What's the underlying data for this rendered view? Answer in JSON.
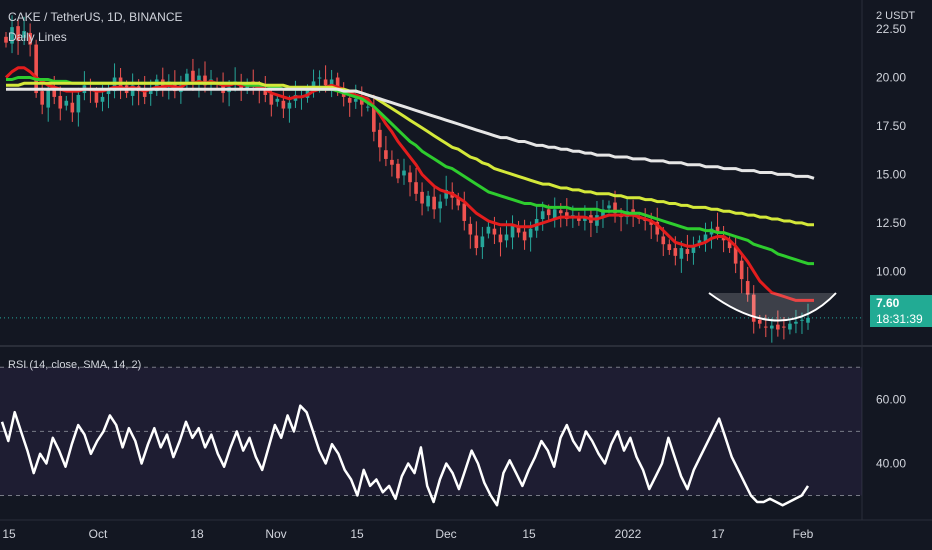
{
  "header": {
    "symbol_line": "CAKE / TetherUS, 1D, BINANCE",
    "indicator_name": "Daily Lines",
    "currency": "2 USDT"
  },
  "last_price": {
    "value": "7.60",
    "countdown": "18:31:39"
  },
  "rsi_label": "RSI (14, close, SMA, 14, 2)",
  "colors": {
    "background": "#131722",
    "up": "#26a69a",
    "down": "#ef5350",
    "ma_fast": "#e31d1d",
    "ma_mid": "#2ecc2e",
    "ma_slow": "#d4e83a",
    "ma_long": "#e6e6e6",
    "rsi_line": "#ffffff",
    "badge": "#22ab94"
  },
  "chart_data": [
    {
      "type": "candlestick",
      "title": "CAKE / TetherUS, 1D, BINANCE",
      "y_ticks": [
        "22.50",
        "20.00",
        "17.50",
        "15.00",
        "12.50",
        "10.00"
      ],
      "ylim": [
        6.2,
        24.0
      ],
      "x_ticks": [
        "15",
        "Oct",
        "18",
        "Nov",
        "15",
        "Dec",
        "15",
        "2022",
        "17",
        "Feb"
      ],
      "last_price": 7.6,
      "price_closes": [
        21.8,
        22.6,
        21.9,
        22.4,
        21.7,
        19.2,
        18.6,
        19.4,
        19.0,
        18.4,
        18.8,
        18.2,
        19.1,
        19.6,
        19.3,
        18.7,
        19.0,
        19.4,
        20.0,
        19.5,
        19.2,
        19.6,
        19.3,
        19.0,
        19.4,
        19.9,
        19.5,
        19.8,
        19.3,
        19.6,
        20.2,
        19.8,
        20.1,
        19.6,
        19.9,
        19.7,
        19.2,
        19.5,
        19.8,
        19.4,
        19.7,
        19.6,
        19.4,
        19.1,
        18.6,
        18.9,
        18.4,
        18.7,
        19.1,
        19.0,
        19.4,
        19.8,
        20.0,
        19.6,
        19.9,
        19.3,
        19.0,
        18.7,
        18.9,
        18.6,
        18.5,
        17.2,
        16.4,
        15.8,
        15.5,
        14.8,
        15.2,
        14.6,
        14.0,
        13.5,
        13.9,
        13.2,
        13.6,
        14.2,
        13.8,
        13.4,
        12.6,
        11.9,
        11.2,
        11.8,
        12.3,
        11.9,
        11.5,
        11.9,
        12.4,
        12.0,
        11.6,
        12.2,
        12.7,
        13.1,
        12.9,
        13.2,
        13.0,
        12.7,
        12.9,
        12.6,
        12.8,
        12.5,
        12.9,
        13.2,
        13.4,
        13.0,
        12.8,
        13.1,
        12.9,
        12.7,
        12.6,
        12.4,
        11.9,
        11.4,
        11.1,
        10.8,
        11.2,
        10.9,
        11.3,
        11.6,
        11.9,
        12.2,
        12.0,
        11.6,
        11.2,
        10.4,
        9.6,
        8.8,
        7.4,
        7.3,
        7.1,
        7.2,
        7.0,
        7.1,
        7.3,
        7.4,
        7.5,
        7.6
      ],
      "series": [
        {
          "name": "",
          "values": [
            20.0,
            20.3,
            20.5,
            20.5,
            20.3,
            20.0,
            19.8,
            19.6,
            19.5,
            19.4,
            19.3,
            19.3,
            19.3,
            19.4,
            19.4,
            19.3,
            19.3,
            19.4,
            19.5,
            19.5,
            19.4,
            19.5,
            19.4,
            19.3,
            19.4,
            19.5,
            19.5,
            19.6,
            19.5,
            19.5,
            19.7,
            19.7,
            19.8,
            19.7,
            19.8,
            19.7,
            19.6,
            19.6,
            19.7,
            19.6,
            19.6,
            19.6,
            19.5,
            19.4,
            19.2,
            19.1,
            19.0,
            18.9,
            19.0,
            19.0,
            19.1,
            19.3,
            19.4,
            19.5,
            19.6,
            19.5,
            19.4,
            19.2,
            19.1,
            19.0,
            18.9,
            18.5,
            18.1,
            17.6,
            17.2,
            16.7,
            16.3,
            15.9,
            15.5,
            15.0,
            14.7,
            14.4,
            14.2,
            14.1,
            14.0,
            13.8,
            13.6,
            13.3,
            13.0,
            12.8,
            12.6,
            12.5,
            12.4,
            12.4,
            12.4,
            12.3,
            12.3,
            12.3,
            12.4,
            12.5,
            12.6,
            12.7,
            12.8,
            12.8,
            12.8,
            12.8,
            12.8,
            12.7,
            12.7,
            12.8,
            12.9,
            12.9,
            12.9,
            12.9,
            12.9,
            12.8,
            12.7,
            12.6,
            12.4,
            12.1,
            11.8,
            11.5,
            11.4,
            11.3,
            11.3,
            11.4,
            11.5,
            11.7,
            11.8,
            11.8,
            11.6,
            11.3,
            10.9,
            10.5,
            10.0,
            9.5,
            9.2,
            8.9,
            8.8,
            8.7,
            8.6,
            8.5,
            8.5,
            8.5,
            8.5
          ]
        },
        {
          "name": "",
          "values": [
            19.9,
            19.9,
            20.0,
            20.0,
            20.0,
            19.9,
            19.9,
            19.9,
            19.8,
            19.8,
            19.8,
            19.7,
            19.7,
            19.7,
            19.7,
            19.7,
            19.7,
            19.7,
            19.7,
            19.7,
            19.7,
            19.7,
            19.7,
            19.7,
            19.7,
            19.7,
            19.7,
            19.7,
            19.7,
            19.7,
            19.7,
            19.7,
            19.7,
            19.7,
            19.7,
            19.7,
            19.7,
            19.7,
            19.7,
            19.7,
            19.6,
            19.6,
            19.6,
            19.6,
            19.5,
            19.5,
            19.4,
            19.4,
            19.4,
            19.4,
            19.4,
            19.4,
            19.4,
            19.4,
            19.4,
            19.3,
            19.2,
            19.1,
            19.0,
            18.9,
            18.7,
            18.5,
            18.2,
            17.9,
            17.6,
            17.3,
            17.0,
            16.7,
            16.5,
            16.2,
            16.0,
            15.8,
            15.6,
            15.4,
            15.3,
            15.1,
            14.9,
            14.7,
            14.5,
            14.3,
            14.1,
            14.0,
            13.9,
            13.8,
            13.7,
            13.6,
            13.5,
            13.5,
            13.4,
            13.4,
            13.3,
            13.3,
            13.3,
            13.3,
            13.2,
            13.2,
            13.2,
            13.2,
            13.2,
            13.1,
            13.1,
            13.1,
            13.1,
            13.0,
            13.0,
            13.0,
            12.9,
            12.8,
            12.7,
            12.6,
            12.5,
            12.4,
            12.3,
            12.2,
            12.2,
            12.2,
            12.1,
            12.1,
            12.0,
            12.0,
            11.9,
            11.8,
            11.7,
            11.6,
            11.4,
            11.3,
            11.2,
            11.1,
            10.9,
            10.8,
            10.7,
            10.6,
            10.5,
            10.4,
            10.4
          ]
        },
        {
          "name": "",
          "values": [
            19.6,
            19.6,
            19.6,
            19.7,
            19.7,
            19.7,
            19.7,
            19.7,
            19.7,
            19.7,
            19.7,
            19.7,
            19.7,
            19.7,
            19.7,
            19.7,
            19.7,
            19.7,
            19.7,
            19.7,
            19.7,
            19.7,
            19.7,
            19.7,
            19.7,
            19.7,
            19.7,
            19.7,
            19.7,
            19.7,
            19.7,
            19.7,
            19.7,
            19.7,
            19.7,
            19.7,
            19.7,
            19.7,
            19.7,
            19.7,
            19.7,
            19.7,
            19.7,
            19.6,
            19.6,
            19.6,
            19.6,
            19.5,
            19.5,
            19.5,
            19.5,
            19.5,
            19.5,
            19.5,
            19.5,
            19.4,
            19.4,
            19.3,
            19.3,
            19.2,
            19.1,
            19.0,
            18.8,
            18.6,
            18.4,
            18.2,
            18.0,
            17.8,
            17.6,
            17.4,
            17.2,
            17.0,
            16.8,
            16.6,
            16.4,
            16.3,
            16.1,
            15.9,
            15.8,
            15.6,
            15.5,
            15.3,
            15.2,
            15.1,
            15.0,
            14.9,
            14.8,
            14.7,
            14.6,
            14.5,
            14.5,
            14.4,
            14.3,
            14.3,
            14.2,
            14.2,
            14.1,
            14.1,
            14.0,
            14.0,
            14.0,
            13.9,
            13.9,
            13.8,
            13.8,
            13.8,
            13.7,
            13.7,
            13.6,
            13.6,
            13.5,
            13.5,
            13.4,
            13.4,
            13.3,
            13.3,
            13.3,
            13.2,
            13.2,
            13.1,
            13.1,
            13.0,
            13.0,
            12.9,
            12.9,
            12.8,
            12.8,
            12.7,
            12.7,
            12.6,
            12.6,
            12.5,
            12.5,
            12.4,
            12.4
          ]
        },
        {
          "name": "",
          "values": [
            19.4,
            19.4,
            19.4,
            19.4,
            19.4,
            19.4,
            19.4,
            19.4,
            19.4,
            19.4,
            19.4,
            19.4,
            19.4,
            19.4,
            19.4,
            19.4,
            19.4,
            19.4,
            19.4,
            19.4,
            19.4,
            19.4,
            19.4,
            19.4,
            19.4,
            19.4,
            19.4,
            19.4,
            19.4,
            19.4,
            19.4,
            19.4,
            19.4,
            19.4,
            19.4,
            19.4,
            19.4,
            19.4,
            19.4,
            19.4,
            19.4,
            19.4,
            19.4,
            19.4,
            19.4,
            19.4,
            19.4,
            19.4,
            19.4,
            19.4,
            19.4,
            19.4,
            19.4,
            19.4,
            19.4,
            19.4,
            19.3,
            19.3,
            19.3,
            19.2,
            19.1,
            19.0,
            18.9,
            18.8,
            18.7,
            18.6,
            18.5,
            18.4,
            18.3,
            18.2,
            18.1,
            18.0,
            17.9,
            17.8,
            17.7,
            17.6,
            17.5,
            17.4,
            17.3,
            17.2,
            17.1,
            17.0,
            16.9,
            16.9,
            16.8,
            16.7,
            16.7,
            16.6,
            16.5,
            16.5,
            16.4,
            16.4,
            16.3,
            16.3,
            16.2,
            16.2,
            16.1,
            16.1,
            16.0,
            16.0,
            16.0,
            15.9,
            15.9,
            15.9,
            15.8,
            15.8,
            15.8,
            15.7,
            15.7,
            15.7,
            15.6,
            15.6,
            15.6,
            15.5,
            15.5,
            15.5,
            15.4,
            15.4,
            15.4,
            15.3,
            15.3,
            15.3,
            15.2,
            15.2,
            15.2,
            15.1,
            15.1,
            15.1,
            15.0,
            15.0,
            15.0,
            14.9,
            14.9,
            14.9,
            14.8
          ]
        }
      ]
    },
    {
      "type": "line",
      "title": "RSI (14, close, SMA, 14, 2)",
      "y_ticks": [
        "60.00",
        "40.00"
      ],
      "ylim": [
        23,
        76
      ],
      "bands": [
        70,
        50,
        30
      ],
      "series": [
        {
          "name": "",
          "values": [
            53,
            47,
            56,
            50,
            44,
            37,
            43,
            40,
            48,
            44,
            39,
            46,
            52,
            49,
            43,
            47,
            50,
            55,
            52,
            45,
            51,
            47,
            40,
            46,
            51,
            45,
            49,
            42,
            47,
            53,
            48,
            51,
            45,
            49,
            43,
            39,
            45,
            50,
            44,
            48,
            42,
            38,
            45,
            52,
            48,
            55,
            50,
            58,
            56,
            50,
            44,
            40,
            46,
            43,
            38,
            35,
            30,
            38,
            33,
            35,
            31,
            33,
            29,
            36,
            40,
            37,
            45,
            33,
            28,
            35,
            40,
            37,
            32,
            38,
            44,
            40,
            34,
            30,
            27,
            37,
            41,
            37,
            33,
            38,
            42,
            47,
            44,
            39,
            48,
            52,
            47,
            44,
            50,
            47,
            43,
            40,
            46,
            50,
            44,
            48,
            42,
            38,
            32,
            36,
            40,
            48,
            42,
            36,
            32,
            38,
            42,
            46,
            50,
            54,
            48,
            42,
            38,
            34,
            30,
            28,
            28,
            29,
            28,
            27,
            28,
            29,
            30,
            33
          ]
        }
      ]
    }
  ]
}
